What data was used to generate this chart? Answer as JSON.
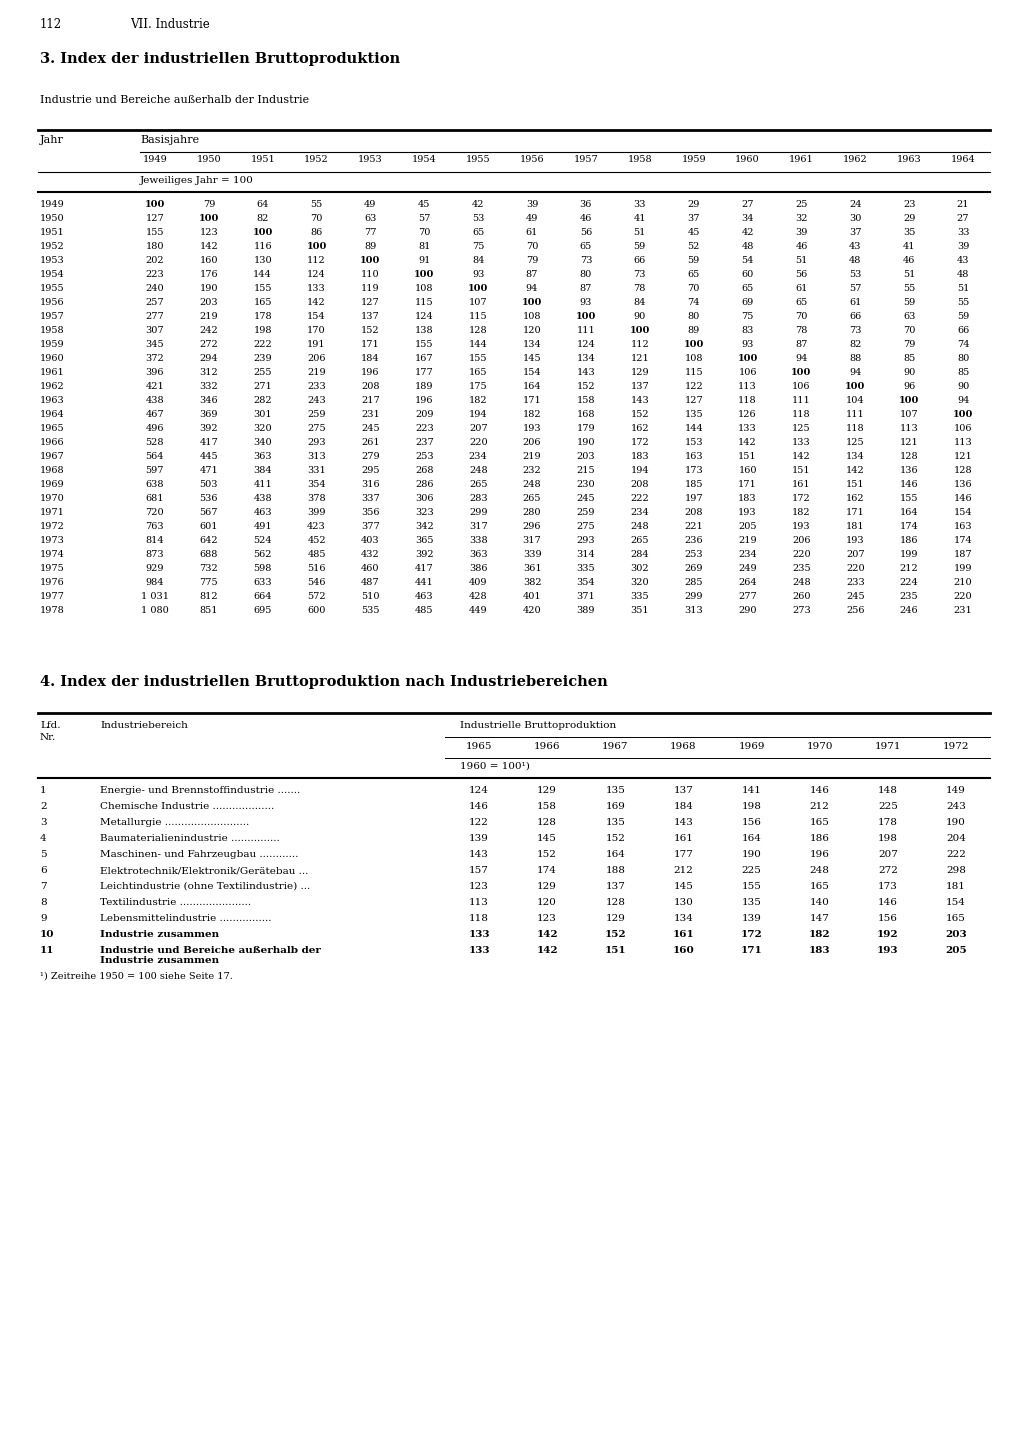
{
  "page_num": "112",
  "chapter": "VII. Industrie",
  "table1_title": "3. Index der industriellen Bruttoproduktion",
  "table1_subtitle": "Industrie und Bereiche außerhalb der Industrie",
  "table1_years_header": [
    "1949",
    "1950",
    "1951",
    "1952",
    "1953",
    "1954",
    "1955",
    "1956",
    "1957",
    "1958",
    "1959",
    "1960",
    "1961",
    "1962",
    "1963",
    "1964"
  ],
  "table1_subheader": "Jeweiliges Jahr = 100",
  "table1_data": [
    [
      "1949",
      "100",
      "79",
      "64",
      "55",
      "49",
      "45",
      "42",
      "39",
      "36",
      "33",
      "29",
      "27",
      "25",
      "24",
      "23",
      "21"
    ],
    [
      "1950",
      "127",
      "100",
      "82",
      "70",
      "63",
      "57",
      "53",
      "49",
      "46",
      "41",
      "37",
      "34",
      "32",
      "30",
      "29",
      "27"
    ],
    [
      "1951",
      "155",
      "123",
      "100",
      "86",
      "77",
      "70",
      "65",
      "61",
      "56",
      "51",
      "45",
      "42",
      "39",
      "37",
      "35",
      "33"
    ],
    [
      "1952",
      "180",
      "142",
      "116",
      "100",
      "89",
      "81",
      "75",
      "70",
      "65",
      "59",
      "52",
      "48",
      "46",
      "43",
      "41",
      "39"
    ],
    [
      "1953",
      "202",
      "160",
      "130",
      "112",
      "100",
      "91",
      "84",
      "79",
      "73",
      "66",
      "59",
      "54",
      "51",
      "48",
      "46",
      "43"
    ],
    [
      "1954",
      "223",
      "176",
      "144",
      "124",
      "110",
      "100",
      "93",
      "87",
      "80",
      "73",
      "65",
      "60",
      "56",
      "53",
      "51",
      "48"
    ],
    [
      "1955",
      "240",
      "190",
      "155",
      "133",
      "119",
      "108",
      "100",
      "94",
      "87",
      "78",
      "70",
      "65",
      "61",
      "57",
      "55",
      "51"
    ],
    [
      "1956",
      "257",
      "203",
      "165",
      "142",
      "127",
      "115",
      "107",
      "100",
      "93",
      "84",
      "74",
      "69",
      "65",
      "61",
      "59",
      "55"
    ],
    [
      "1957",
      "277",
      "219",
      "178",
      "154",
      "137",
      "124",
      "115",
      "108",
      "100",
      "90",
      "80",
      "75",
      "70",
      "66",
      "63",
      "59"
    ],
    [
      "1958",
      "307",
      "242",
      "198",
      "170",
      "152",
      "138",
      "128",
      "120",
      "111",
      "100",
      "89",
      "83",
      "78",
      "73",
      "70",
      "66"
    ],
    [
      "1959",
      "345",
      "272",
      "222",
      "191",
      "171",
      "155",
      "144",
      "134",
      "124",
      "112",
      "100",
      "93",
      "87",
      "82",
      "79",
      "74"
    ],
    [
      "1960",
      "372",
      "294",
      "239",
      "206",
      "184",
      "167",
      "155",
      "145",
      "134",
      "121",
      "108",
      "100",
      "94",
      "88",
      "85",
      "80"
    ],
    [
      "1961",
      "396",
      "312",
      "255",
      "219",
      "196",
      "177",
      "165",
      "154",
      "143",
      "129",
      "115",
      "106",
      "100",
      "94",
      "90",
      "85"
    ],
    [
      "1962",
      "421",
      "332",
      "271",
      "233",
      "208",
      "189",
      "175",
      "164",
      "152",
      "137",
      "122",
      "113",
      "106",
      "100",
      "96",
      "90"
    ],
    [
      "1963",
      "438",
      "346",
      "282",
      "243",
      "217",
      "196",
      "182",
      "171",
      "158",
      "143",
      "127",
      "118",
      "111",
      "104",
      "100",
      "94"
    ],
    [
      "1964",
      "467",
      "369",
      "301",
      "259",
      "231",
      "209",
      "194",
      "182",
      "168",
      "152",
      "135",
      "126",
      "118",
      "111",
      "107",
      "100"
    ],
    [
      "1965",
      "496",
      "392",
      "320",
      "275",
      "245",
      "223",
      "207",
      "193",
      "179",
      "162",
      "144",
      "133",
      "125",
      "118",
      "113",
      "106"
    ],
    [
      "1966",
      "528",
      "417",
      "340",
      "293",
      "261",
      "237",
      "220",
      "206",
      "190",
      "172",
      "153",
      "142",
      "133",
      "125",
      "121",
      "113"
    ],
    [
      "1967",
      "564",
      "445",
      "363",
      "313",
      "279",
      "253",
      "234",
      "219",
      "203",
      "183",
      "163",
      "151",
      "142",
      "134",
      "128",
      "121"
    ],
    [
      "1968",
      "597",
      "471",
      "384",
      "331",
      "295",
      "268",
      "248",
      "232",
      "215",
      "194",
      "173",
      "160",
      "151",
      "142",
      "136",
      "128"
    ],
    [
      "1969",
      "638",
      "503",
      "411",
      "354",
      "316",
      "286",
      "265",
      "248",
      "230",
      "208",
      "185",
      "171",
      "161",
      "151",
      "146",
      "136"
    ],
    [
      "1970",
      "681",
      "536",
      "438",
      "378",
      "337",
      "306",
      "283",
      "265",
      "245",
      "222",
      "197",
      "183",
      "172",
      "162",
      "155",
      "146"
    ],
    [
      "1971",
      "720",
      "567",
      "463",
      "399",
      "356",
      "323",
      "299",
      "280",
      "259",
      "234",
      "208",
      "193",
      "182",
      "171",
      "164",
      "154"
    ],
    [
      "1972",
      "763",
      "601",
      "491",
      "423",
      "377",
      "342",
      "317",
      "296",
      "275",
      "248",
      "221",
      "205",
      "193",
      "181",
      "174",
      "163"
    ],
    [
      "1973",
      "814",
      "642",
      "524",
      "452",
      "403",
      "365",
      "338",
      "317",
      "293",
      "265",
      "236",
      "219",
      "206",
      "193",
      "186",
      "174"
    ],
    [
      "1974",
      "873",
      "688",
      "562",
      "485",
      "432",
      "392",
      "363",
      "339",
      "314",
      "284",
      "253",
      "234",
      "220",
      "207",
      "199",
      "187"
    ],
    [
      "1975",
      "929",
      "732",
      "598",
      "516",
      "460",
      "417",
      "386",
      "361",
      "335",
      "302",
      "269",
      "249",
      "235",
      "220",
      "212",
      "199"
    ],
    [
      "1976",
      "984",
      "775",
      "633",
      "546",
      "487",
      "441",
      "409",
      "382",
      "354",
      "320",
      "285",
      "264",
      "248",
      "233",
      "224",
      "210"
    ],
    [
      "1977",
      "1 031",
      "812",
      "664",
      "572",
      "510",
      "463",
      "428",
      "401",
      "371",
      "335",
      "299",
      "277",
      "260",
      "245",
      "235",
      "220"
    ],
    [
      "1978",
      "1 080",
      "851",
      "695",
      "600",
      "535",
      "485",
      "449",
      "420",
      "389",
      "351",
      "313",
      "290",
      "273",
      "256",
      "246",
      "231"
    ]
  ],
  "bold_col_index": [
    0,
    1,
    2,
    3,
    4,
    5,
    6,
    7,
    8,
    9,
    10,
    11,
    12,
    13,
    14,
    15
  ],
  "table2_title": "4. Index der industriellen Bruttoproduktion nach Industriebereichen",
  "table2_years": [
    "1965",
    "1966",
    "1967",
    "1968",
    "1969",
    "1970",
    "1971",
    "1972"
  ],
  "table2_base": "1960 = 100¹)",
  "table2_data": [
    [
      "1",
      "Energie- und Brennstoffindustrie .......",
      "124",
      "129",
      "135",
      "137",
      "141",
      "146",
      "148",
      "149"
    ],
    [
      "2",
      "Chemische Industrie ...................",
      "146",
      "158",
      "169",
      "184",
      "198",
      "212",
      "225",
      "243"
    ],
    [
      "3",
      "Metallurgie ..........................",
      "122",
      "128",
      "135",
      "143",
      "156",
      "165",
      "178",
      "190"
    ],
    [
      "4",
      "Baumaterialienindustrie ...............",
      "139",
      "145",
      "152",
      "161",
      "164",
      "186",
      "198",
      "204"
    ],
    [
      "5",
      "Maschinen- und Fahrzeugbau ............",
      "143",
      "152",
      "164",
      "177",
      "190",
      "196",
      "207",
      "222"
    ],
    [
      "6",
      "Elektrotechnik/Elektronik/Gerätebau ...",
      "157",
      "174",
      "188",
      "212",
      "225",
      "248",
      "272",
      "298"
    ],
    [
      "7",
      "Leichtindustrie (ohne Textilindustrie) ...",
      "123",
      "129",
      "137",
      "145",
      "155",
      "165",
      "173",
      "181"
    ],
    [
      "8",
      "Textilindustrie ......................",
      "113",
      "120",
      "128",
      "130",
      "135",
      "140",
      "146",
      "154"
    ],
    [
      "9",
      "Lebensmittelindustrie ................",
      "118",
      "123",
      "129",
      "134",
      "139",
      "147",
      "156",
      "165"
    ],
    [
      "10",
      "Industrie zusammen",
      "133",
      "142",
      "152",
      "161",
      "172",
      "182",
      "192",
      "203"
    ],
    [
      "11",
      "Industrie und Bereiche außerhalb der\nIndustrie zusammen",
      "133",
      "142",
      "151",
      "160",
      "171",
      "183",
      "193",
      "205"
    ]
  ],
  "table2_footnote": "¹) Zeitreihe 1950 = 100 siehe Seite 17."
}
